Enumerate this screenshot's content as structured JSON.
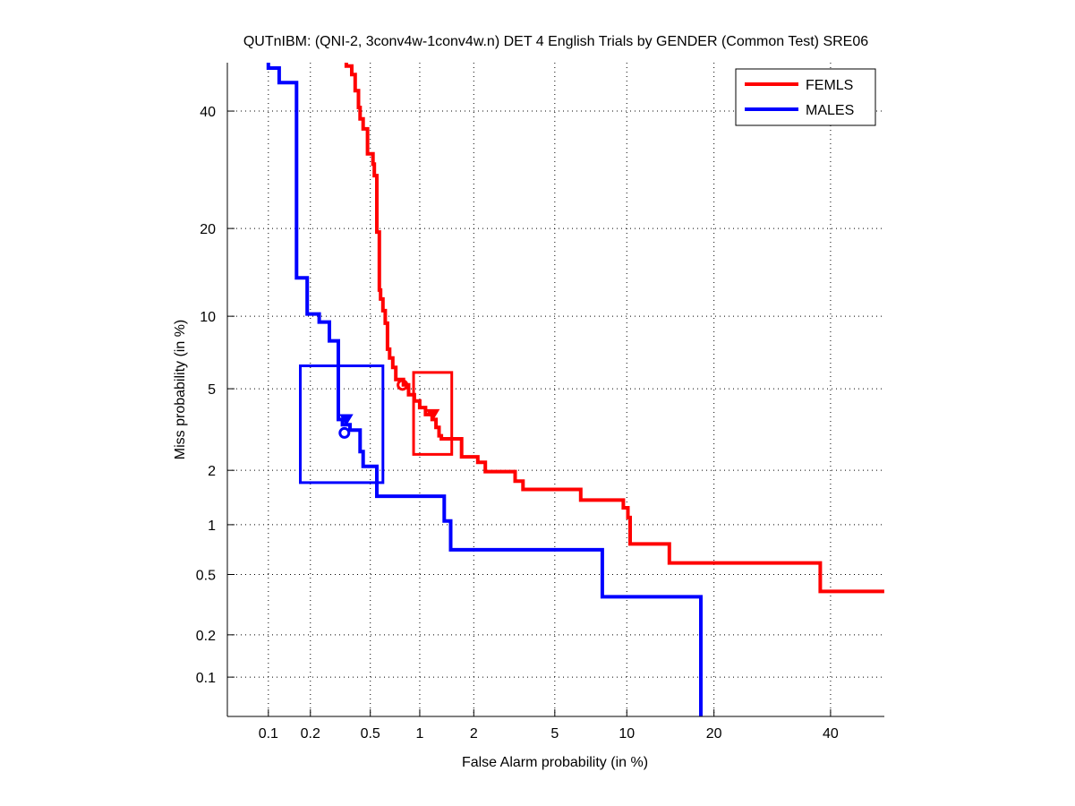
{
  "chart_data": {
    "type": "line",
    "scale": "normal-deviate (DET)",
    "title": "QUTnIBM: (QNI-2, 3conv4w-1conv4w.n) DET 4 English Trials by GENDER (Common Test) SRE06",
    "xlabel": "False Alarm probability (in %)",
    "ylabel": "Miss probability (in %)",
    "xlim": [
      0.05,
      50.7
    ],
    "ylim": [
      0.05,
      49.6
    ],
    "grid": true,
    "legend_position": "top-right",
    "x_ticks": [
      {
        "value": 0.1,
        "label": "0.1"
      },
      {
        "value": 0.2,
        "label": "0.2"
      },
      {
        "value": 0.5,
        "label": "0.5"
      },
      {
        "value": 1,
        "label": "1"
      },
      {
        "value": 2,
        "label": "2"
      },
      {
        "value": 5,
        "label": "5"
      },
      {
        "value": 10,
        "label": "10"
      },
      {
        "value": 20,
        "label": "20"
      },
      {
        "value": 40,
        "label": "40"
      }
    ],
    "y_ticks": [
      {
        "value": 0.1,
        "label": "0.1"
      },
      {
        "value": 0.2,
        "label": "0.2"
      },
      {
        "value": 0.5,
        "label": "0.5"
      },
      {
        "value": 1,
        "label": "1"
      },
      {
        "value": 2,
        "label": "2"
      },
      {
        "value": 5,
        "label": "5"
      },
      {
        "value": 10,
        "label": "10"
      },
      {
        "value": 20,
        "label": "20"
      },
      {
        "value": 40,
        "label": "40"
      }
    ],
    "series": [
      {
        "name": "FEMLS",
        "color": "#ff0000",
        "points": [
          [
            0.35,
            49.6
          ],
          [
            0.35,
            48.9
          ],
          [
            0.38,
            48.9
          ],
          [
            0.38,
            47.2
          ],
          [
            0.4,
            47.2
          ],
          [
            0.4,
            44.0
          ],
          [
            0.42,
            44.0
          ],
          [
            0.42,
            40.7
          ],
          [
            0.43,
            40.7
          ],
          [
            0.43,
            38.5
          ],
          [
            0.45,
            38.5
          ],
          [
            0.45,
            36.6
          ],
          [
            0.48,
            36.6
          ],
          [
            0.48,
            32.0
          ],
          [
            0.52,
            32.0
          ],
          [
            0.52,
            30.2
          ],
          [
            0.53,
            30.2
          ],
          [
            0.53,
            28.2
          ],
          [
            0.55,
            28.2
          ],
          [
            0.55,
            19.5
          ],
          [
            0.57,
            19.5
          ],
          [
            0.57,
            12.5
          ],
          [
            0.58,
            12.5
          ],
          [
            0.58,
            11.6
          ],
          [
            0.6,
            11.6
          ],
          [
            0.6,
            10.5
          ],
          [
            0.62,
            10.5
          ],
          [
            0.62,
            9.4
          ],
          [
            0.64,
            9.4
          ],
          [
            0.64,
            7.4
          ],
          [
            0.66,
            7.4
          ],
          [
            0.66,
            6.8
          ],
          [
            0.69,
            6.8
          ],
          [
            0.69,
            6.2
          ],
          [
            0.72,
            6.2
          ],
          [
            0.72,
            5.5
          ],
          [
            0.8,
            5.5
          ],
          [
            0.8,
            5.2
          ],
          [
            0.86,
            5.2
          ],
          [
            0.86,
            4.7
          ],
          [
            0.93,
            4.7
          ],
          [
            0.93,
            4.4
          ],
          [
            1.0,
            4.4
          ],
          [
            1.0,
            4.1
          ],
          [
            1.08,
            4.1
          ],
          [
            1.08,
            3.8
          ],
          [
            1.18,
            3.8
          ],
          [
            1.18,
            3.6
          ],
          [
            1.24,
            3.6
          ],
          [
            1.24,
            3.3
          ],
          [
            1.29,
            3.3
          ],
          [
            1.29,
            3.0
          ],
          [
            1.33,
            3.0
          ],
          [
            1.33,
            2.9
          ],
          [
            1.72,
            2.9
          ],
          [
            1.72,
            2.35
          ],
          [
            2.1,
            2.35
          ],
          [
            2.1,
            2.2
          ],
          [
            2.3,
            2.2
          ],
          [
            2.3,
            1.97
          ],
          [
            3.25,
            1.97
          ],
          [
            3.25,
            1.75
          ],
          [
            3.55,
            1.75
          ],
          [
            3.55,
            1.58
          ],
          [
            6.5,
            1.58
          ],
          [
            6.5,
            1.38
          ],
          [
            9.7,
            1.38
          ],
          [
            9.7,
            1.25
          ],
          [
            10.1,
            1.25
          ],
          [
            10.1,
            1.1
          ],
          [
            10.3,
            1.1
          ],
          [
            10.3,
            0.77
          ],
          [
            14.3,
            0.77
          ],
          [
            14.3,
            0.59
          ],
          [
            38.0,
            0.59
          ],
          [
            38.0,
            0.39
          ],
          [
            50.7,
            0.39
          ]
        ],
        "dcf_min_marker": {
          "symbol": "circle",
          "x": 0.79,
          "y": 5.2
        },
        "dcf_actual_marker": {
          "symbol": "triangle-down",
          "x": 1.19,
          "y": 3.8
        },
        "confidence_box": {
          "x": [
            0.92,
            1.52
          ],
          "y": [
            2.42,
            5.9
          ]
        }
      },
      {
        "name": "MALES",
        "color": "#0000ff",
        "points": [
          [
            0.1,
            49.6
          ],
          [
            0.1,
            48.5
          ],
          [
            0.12,
            48.5
          ],
          [
            0.12,
            45.6
          ],
          [
            0.16,
            45.6
          ],
          [
            0.16,
            13.8
          ],
          [
            0.19,
            13.8
          ],
          [
            0.19,
            10.2
          ],
          [
            0.23,
            10.2
          ],
          [
            0.23,
            9.5
          ],
          [
            0.27,
            9.5
          ],
          [
            0.27,
            8.0
          ],
          [
            0.31,
            8.0
          ],
          [
            0.31,
            3.6
          ],
          [
            0.33,
            3.6
          ],
          [
            0.33,
            3.4
          ],
          [
            0.37,
            3.4
          ],
          [
            0.37,
            3.2
          ],
          [
            0.43,
            3.2
          ],
          [
            0.43,
            2.5
          ],
          [
            0.45,
            2.5
          ],
          [
            0.45,
            2.1
          ],
          [
            0.55,
            2.1
          ],
          [
            0.55,
            1.45
          ],
          [
            1.38,
            1.45
          ],
          [
            1.38,
            1.05
          ],
          [
            1.5,
            1.05
          ],
          [
            1.5,
            0.71
          ],
          [
            8.0,
            0.71
          ],
          [
            8.0,
            0.36
          ],
          [
            18.2,
            0.36
          ],
          [
            18.2,
            0.05
          ]
        ],
        "dcf_min_marker": {
          "symbol": "circle",
          "x": 0.34,
          "y": 3.1
        },
        "dcf_actual_marker": {
          "symbol": "triangle-down",
          "x": 0.35,
          "y": 3.6
        },
        "confidence_box": {
          "x": [
            0.17,
            0.6
          ],
          "y": [
            1.72,
            6.3
          ]
        }
      }
    ]
  }
}
